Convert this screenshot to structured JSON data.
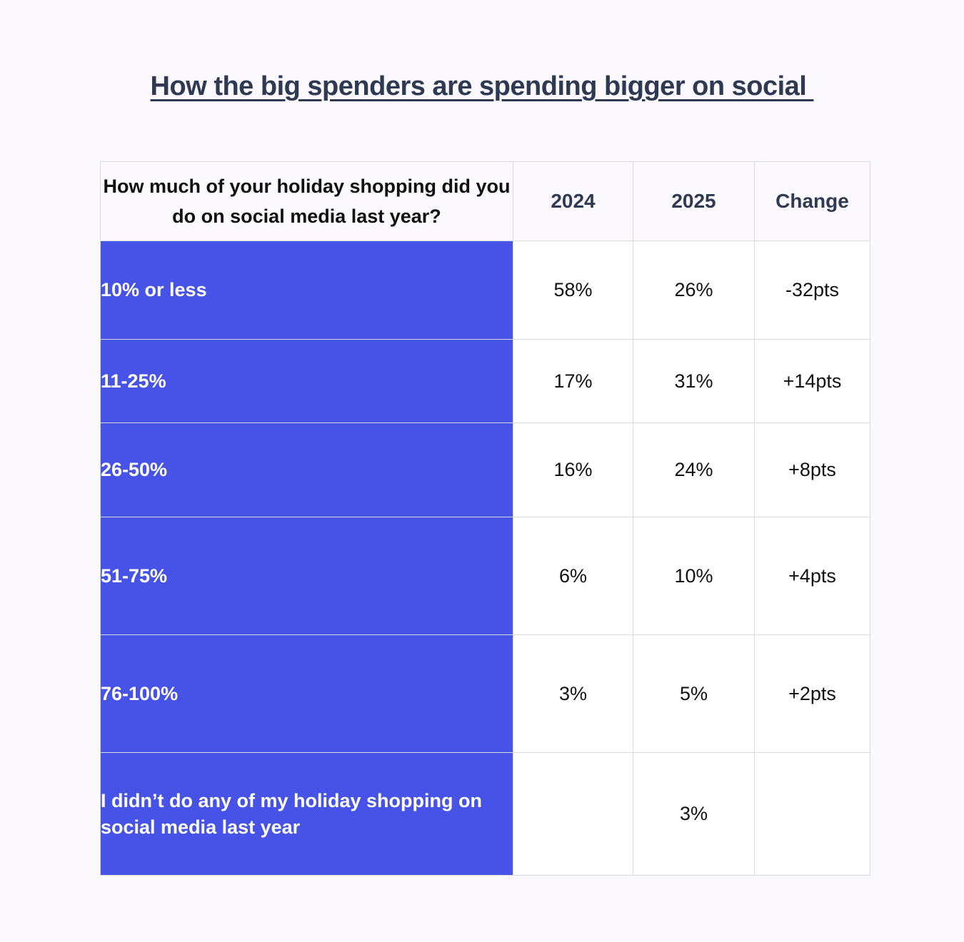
{
  "title": "How the big spenders are spending bigger on social ",
  "chart_data": {
    "type": "table",
    "title": "How the big spenders are spending bigger on social ",
    "columns": [
      "How much of your holiday shopping did you do on social media last year?",
      "2024",
      "2025",
      "Change"
    ],
    "rows": [
      {
        "label": "10% or less",
        "y2024": "58%",
        "y2025": "26%",
        "change": "-32pts"
      },
      {
        "label": "11-25%",
        "y2024": "17%",
        "y2025": "31%",
        "change": "+14pts"
      },
      {
        "label": "26-50%",
        "y2024": "16%",
        "y2025": "24%",
        "change": "+8pts"
      },
      {
        "label": "51-75%",
        "y2024": "6%",
        "y2025": "10%",
        "change": "+4pts"
      },
      {
        "label": "76-100%",
        "y2024": "3%",
        "y2025": "5%",
        "change": "+2pts"
      },
      {
        "label": "I didn’t do any of my holiday shopping on social media last year",
        "y2024": "",
        "y2025": "3%",
        "change": ""
      }
    ]
  },
  "colors": {
    "background": "#fbf9fe",
    "label_cell": "#4653e6",
    "title": "#2e3a52",
    "grid": "#d9d9e0"
  }
}
